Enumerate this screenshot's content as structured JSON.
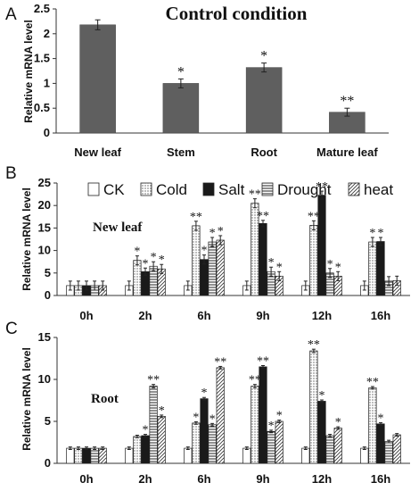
{
  "chart_data": [
    {
      "panel": "A",
      "type": "bar",
      "title": "Control condition",
      "ylabel": "Relative mRNA level",
      "ylim": [
        0,
        2.5
      ],
      "yticks": [
        "0",
        "0.5",
        "1",
        "1.5",
        "2",
        "2.5"
      ],
      "categories": [
        "New leaf",
        "Stem",
        "Root",
        "Mature leaf"
      ],
      "values": [
        2.18,
        1.0,
        1.32,
        0.42
      ],
      "errors": [
        0.1,
        0.09,
        0.09,
        0.08
      ],
      "annotations": [
        "",
        "*",
        "*",
        "**"
      ],
      "color": "#5f5f5f"
    },
    {
      "panel": "B",
      "type": "bar",
      "annotation": "New leaf",
      "ylabel": "Relative mRNA level",
      "ylim": [
        0,
        25
      ],
      "yticks": [
        "0",
        "5",
        "10",
        "15",
        "20",
        "25"
      ],
      "categories": [
        "0h",
        "2h",
        "6h",
        "9h",
        "12h",
        "16h"
      ],
      "legend": [
        "CK",
        "Cold",
        "Salt",
        "Drought",
        "heat"
      ],
      "series": [
        {
          "name": "CK",
          "values": [
            2.2,
            2.2,
            2.2,
            2.2,
            2.2,
            2.2
          ],
          "errors": [
            1.0,
            1.0,
            1.0,
            1.0,
            1.0,
            1.0
          ],
          "stars": [
            "",
            "",
            "",
            "",
            "",
            ""
          ]
        },
        {
          "name": "Cold",
          "values": [
            2.2,
            7.8,
            15.5,
            20.5,
            15.6,
            11.9
          ],
          "errors": [
            1.0,
            1.0,
            1.0,
            1.0,
            1.0,
            1.0
          ],
          "stars": [
            "",
            "*",
            "**",
            "**",
            "**",
            "*"
          ]
        },
        {
          "name": "Salt",
          "values": [
            2.2,
            5.3,
            8.0,
            16.0,
            22.3,
            12.0
          ],
          "errors": [
            1.0,
            0.8,
            1.0,
            0.7,
            0.9,
            0.9
          ],
          "stars": [
            "",
            "*",
            "*",
            "**",
            "**",
            "*"
          ]
        },
        {
          "name": "Drought",
          "values": [
            2.2,
            6.5,
            11.9,
            5.3,
            5.0,
            3.2
          ],
          "errors": [
            1.0,
            1.0,
            1.0,
            1.0,
            1.0,
            1.0
          ],
          "stars": [
            "",
            "*",
            "*",
            "*",
            "*",
            ""
          ]
        },
        {
          "name": "heat",
          "values": [
            2.2,
            5.9,
            12.3,
            4.3,
            4.3,
            3.3
          ],
          "errors": [
            1.0,
            1.0,
            1.0,
            1.0,
            1.0,
            1.0
          ],
          "stars": [
            "",
            "*",
            "*",
            "*",
            "*",
            ""
          ]
        }
      ]
    },
    {
      "panel": "C",
      "type": "bar",
      "annotation": "Root",
      "ylabel": "Relative mRNA level",
      "ylim": [
        0,
        15
      ],
      "yticks": [
        "0",
        "5",
        "10",
        "15"
      ],
      "categories": [
        "0h",
        "2h",
        "6h",
        "9h",
        "12h",
        "16h"
      ],
      "series": [
        {
          "name": "CK",
          "values": [
            1.8,
            1.8,
            1.8,
            1.8,
            1.8,
            1.8
          ],
          "errors": [
            0.15,
            0.15,
            0.15,
            0.15,
            0.15,
            0.15
          ],
          "stars": [
            "",
            "",
            "",
            "",
            "",
            ""
          ]
        },
        {
          "name": "Cold",
          "values": [
            1.8,
            3.2,
            4.8,
            9.2,
            13.4,
            9.0
          ],
          "errors": [
            0.15,
            0.15,
            0.15,
            0.2,
            0.2,
            0.15
          ],
          "stars": [
            "",
            "",
            "*",
            "**",
            "**",
            "**"
          ]
        },
        {
          "name": "Salt",
          "values": [
            1.8,
            3.3,
            7.7,
            11.5,
            7.4,
            4.7
          ],
          "errors": [
            0.15,
            0.15,
            0.15,
            0.15,
            0.15,
            0.15
          ],
          "stars": [
            "",
            "*",
            "*",
            "**",
            "*",
            "*"
          ]
        },
        {
          "name": "Drought",
          "values": [
            1.8,
            9.2,
            4.6,
            3.8,
            3.3,
            2.6
          ],
          "errors": [
            0.15,
            0.2,
            0.15,
            0.15,
            0.15,
            0.15
          ],
          "stars": [
            "",
            "**",
            "*",
            "*",
            "",
            ""
          ]
        },
        {
          "name": "heat",
          "values": [
            1.8,
            5.6,
            11.4,
            5.0,
            4.2,
            3.4
          ],
          "errors": [
            0.15,
            0.15,
            0.15,
            0.15,
            0.15,
            0.15
          ],
          "stars": [
            "",
            "*",
            "**",
            "*",
            "*",
            ""
          ]
        }
      ]
    }
  ],
  "panel_labels": [
    "A",
    "B",
    "C"
  ]
}
